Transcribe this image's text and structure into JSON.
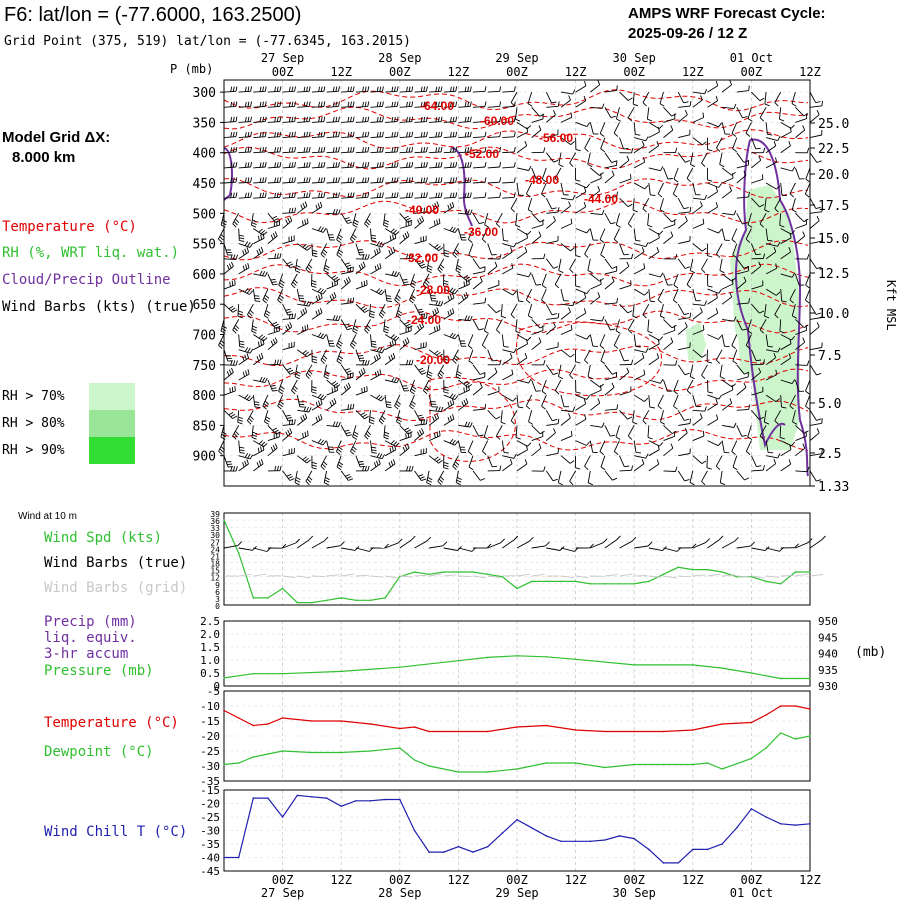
{
  "header": {
    "title": "F6:  lat/lon = (-77.6000, 163.2500)",
    "grid_point": "Grid Point (375, 519) lat/lon = (-77.6345, 163.2015)",
    "cycle_label": "AMPS WRF Forecast Cycle:",
    "cycle_value": "2025-09-26 / 12  Z",
    "model_grid_label": "Model Grid ΔX:",
    "model_grid_value": "8.000 km"
  },
  "colors": {
    "temperature": "#e00000",
    "rh": "#30c030",
    "cloud": "#7030a0",
    "wind": "#000000",
    "wind_grid": "#c8c8c8",
    "precip": "#7030a0",
    "pressure": "#30c030",
    "dewpoint": "#30c030",
    "windchill": "#2020b0",
    "rh70": "#ccf5cc",
    "rh80": "#99e699",
    "rh90": "#33dd33"
  },
  "legend_upper": {
    "temperature": "Temperature (°C)",
    "rh": "RH (%, WRT liq. wat.)",
    "cloud": "Cloud/Precip Outline",
    "wind": "Wind Barbs (kts) (true)",
    "rh70": "RH > 70%",
    "rh80": "RH > 80%",
    "rh90": "RH > 90%"
  },
  "time_axis": {
    "ticks": [
      "00Z",
      "12Z",
      "00Z",
      "12Z",
      "00Z",
      "12Z",
      "00Z",
      "12Z",
      "00Z",
      "12Z"
    ],
    "dates": [
      "27 Sep",
      "28 Sep",
      "29 Sep",
      "30 Sep",
      "01 Oct"
    ],
    "start_label": "2025-09-26 12Z",
    "hours_range": [
      0,
      120
    ]
  },
  "chart_data": [
    {
      "type": "line",
      "panel": "time-height cross section",
      "yaxis_left_label": "P (mb)",
      "pressure_ticks": [
        300,
        350,
        400,
        450,
        500,
        550,
        600,
        650,
        700,
        750,
        800,
        850,
        900
      ],
      "ylim": [
        300,
        950
      ],
      "yaxis_right_label": "Kft MSL",
      "height_ticks": [
        "25.0",
        "22.5",
        "20.0",
        "17.5",
        "15.0",
        "12.5",
        "10.0",
        "7.5",
        "5.0",
        "2.5",
        "1.33"
      ],
      "temperature_contours": [
        {
          "label": "-64.00",
          "level": -64
        },
        {
          "label": "-60.00",
          "level": -60
        },
        {
          "label": "-56.00",
          "level": -56
        },
        {
          "label": "-52.00",
          "level": -52
        },
        {
          "label": "-48.00",
          "level": -48
        },
        {
          "label": "-44.00",
          "level": -44
        },
        {
          "label": "-40.00",
          "level": -40
        },
        {
          "label": "-36.00",
          "level": -36
        },
        {
          "label": "-32.00",
          "level": -32
        },
        {
          "label": "-28.00",
          "level": -28
        },
        {
          "label": "-24.00",
          "level": -24
        },
        {
          "label": "-20.00",
          "level": -20
        }
      ],
      "rh_region": {
        "hours": [
          102,
          120
        ],
        "pressure": [
          440,
          900
        ],
        "rh_min": 70
      }
    },
    {
      "type": "line",
      "panel": "surface wind",
      "title": "Wind at 10 m",
      "legend": [
        "Wind Spd (kts)",
        "Wind Barbs (true)",
        "Wind Barbs (grid)"
      ],
      "yticks": [
        39,
        36,
        33,
        30,
        27,
        24,
        21,
        18,
        15,
        12,
        9,
        6,
        3,
        0
      ],
      "ylim": [
        0,
        39
      ],
      "x_hours": [
        0,
        3,
        6,
        9,
        12,
        15,
        18,
        21,
        24,
        27,
        30,
        33,
        36,
        39,
        42,
        45,
        48,
        51,
        54,
        57,
        60,
        63,
        66,
        69,
        72,
        75,
        78,
        81,
        84,
        87,
        90,
        93,
        96,
        99,
        102,
        105,
        108,
        111,
        114,
        117,
        120
      ],
      "series": [
        {
          "name": "Wind Spd (kts)",
          "values": [
            36,
            22,
            3,
            3,
            7,
            1,
            1,
            2,
            3,
            2,
            2,
            3,
            12,
            14,
            13,
            14,
            14,
            14,
            13,
            12,
            7,
            10,
            10,
            10,
            10,
            9,
            9,
            9,
            9,
            10,
            13,
            16,
            15,
            15,
            14,
            12,
            12,
            10,
            9,
            14,
            14
          ]
        }
      ]
    },
    {
      "type": "line",
      "panel": "precip and pressure",
      "legend": [
        "Precip (mm)",
        "liq. equiv.",
        "3-hr accum",
        "Pressure (mb)"
      ],
      "yticks_left": [
        "2.5",
        "2.0",
        "1.5",
        "1.0",
        "0.5",
        "0"
      ],
      "ylim_left": [
        0,
        2.5
      ],
      "yticks_right": [
        950,
        945,
        940,
        935,
        930
      ],
      "ylim_right": [
        930,
        950
      ],
      "right_unit": "(mb)",
      "x_hours": [
        0,
        6,
        12,
        24,
        36,
        48,
        54,
        60,
        66,
        72,
        84,
        96,
        102,
        108,
        114,
        120
      ],
      "series": [
        {
          "name": "Pressure (mb)",
          "values": [
            932.5,
            933.8,
            933.8,
            934.5,
            935.8,
            937.8,
            938.8,
            939.3,
            939.0,
            938.2,
            936.5,
            936.5,
            935.5,
            934.0,
            932.3,
            932.3
          ]
        }
      ]
    },
    {
      "type": "line",
      "panel": "temperature and dewpoint",
      "legend": [
        "Temperature (°C)",
        "Dewpoint (°C)"
      ],
      "yticks": [
        -5,
        -10,
        -15,
        -20,
        -25,
        -30,
        -35
      ],
      "ylim": [
        -35,
        -5
      ],
      "x_hours": [
        0,
        3,
        6,
        9,
        12,
        18,
        24,
        30,
        36,
        39,
        42,
        48,
        54,
        60,
        66,
        72,
        78,
        84,
        90,
        96,
        99,
        102,
        108,
        111,
        114,
        117,
        120
      ],
      "series": [
        {
          "name": "Temperature (°C)",
          "values": [
            -11.5,
            -14,
            -16.5,
            -16,
            -14,
            -15,
            -15,
            -16,
            -17.5,
            -17,
            -18.5,
            -18.5,
            -18.5,
            -17,
            -16.5,
            -18,
            -18.5,
            -18.5,
            -18.5,
            -18,
            -17,
            -16,
            -15.5,
            -13,
            -10,
            -10,
            -11
          ]
        },
        {
          "name": "Dewpoint (°C)",
          "values": [
            -29.5,
            -29,
            -27,
            -26,
            -25,
            -25.5,
            -25.5,
            -25,
            -24,
            -28,
            -30,
            -32,
            -32,
            -31,
            -29,
            -29,
            -30.5,
            -29.5,
            -29.5,
            -29.5,
            -29,
            -31,
            -27.5,
            -24,
            -19,
            -21,
            -20
          ]
        }
      ]
    },
    {
      "type": "line",
      "panel": "wind chill",
      "legend": [
        "Wind Chill T (°C)"
      ],
      "yticks": [
        -15,
        -20,
        -25,
        -30,
        -35,
        -40,
        -45
      ],
      "ylim": [
        -45,
        -15
      ],
      "x_hours": [
        0,
        3,
        6,
        9,
        12,
        15,
        18,
        21,
        24,
        27,
        30,
        33,
        36,
        39,
        42,
        45,
        48,
        51,
        54,
        57,
        60,
        63,
        66,
        69,
        72,
        75,
        78,
        81,
        84,
        87,
        90,
        93,
        96,
        99,
        102,
        105,
        108,
        111,
        114,
        117,
        120
      ],
      "series": [
        {
          "name": "Wind Chill T (°C)",
          "values": [
            -40,
            -40,
            -18,
            -18,
            -25,
            -17,
            -17.5,
            -18,
            -21,
            -19,
            -19,
            -18.5,
            -18.5,
            -30,
            -38,
            -38,
            -36,
            -38,
            -36,
            -31,
            -26,
            -29,
            -32,
            -34,
            -34,
            -34,
            -33.5,
            -32,
            -33,
            -37,
            -42,
            -42,
            -37,
            -37,
            -35,
            -29,
            -22,
            -25,
            -27.5,
            -28,
            -27.5
          ]
        }
      ]
    }
  ]
}
